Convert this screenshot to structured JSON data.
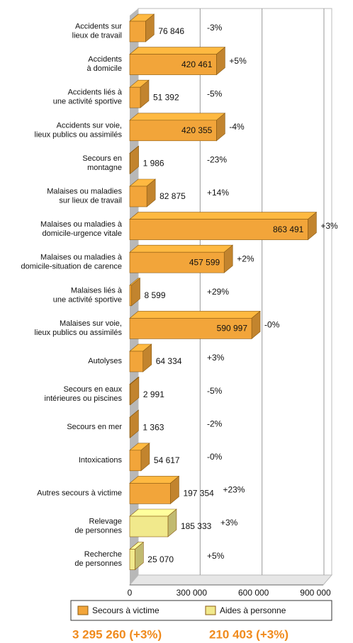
{
  "chart_data": {
    "type": "bar",
    "orientation": "horizontal",
    "categories": [
      [
        "Accidents sur",
        "lieux de travail"
      ],
      [
        "Accidents",
        "à domicile"
      ],
      [
        "Accidents liés à",
        "une activité sportive"
      ],
      [
        "Accidents sur voie,",
        "lieux publics ou assimilés"
      ],
      [
        "Secours en",
        "montagne"
      ],
      [
        "Malaises ou maladies",
        "sur lieux de travail"
      ],
      [
        "Malaises ou maladies à",
        "domicile-urgence vitale"
      ],
      [
        "Malaises ou maladies à",
        "domicile-situation de carence"
      ],
      [
        "Malaises liés à",
        "une activité sportive"
      ],
      [
        "Malaises sur voie,",
        "lieux publics ou assimilés"
      ],
      [
        "Autolyses"
      ],
      [
        "Secours en eaux",
        "intérieures ou piscines"
      ],
      [
        "Secours en mer"
      ],
      [
        "Intoxications"
      ],
      [
        "Autres secours à victime"
      ],
      [
        "Relevage",
        "de personnes"
      ],
      [
        "Recherche",
        "de personnes"
      ]
    ],
    "series": [
      {
        "name": "Secours à victime",
        "color": "#f2a53a",
        "values": [
          76846,
          420461,
          51392,
          420355,
          1986,
          82875,
          863491,
          457599,
          8599,
          590997,
          64334,
          2991,
          1363,
          54617,
          197354,
          null,
          null
        ],
        "value_labels": [
          "76 846",
          "420 461",
          "51 392",
          "420 355",
          "1 986",
          "82 875",
          "863 491",
          "457 599",
          "8 599",
          "590 997",
          "64 334",
          "2 991",
          "1 363",
          "54 617",
          "197 354",
          null,
          null
        ]
      },
      {
        "name": "Aides à personne",
        "color": "#f1e98c",
        "values": [
          null,
          null,
          null,
          null,
          null,
          null,
          null,
          null,
          null,
          null,
          null,
          null,
          null,
          null,
          null,
          185333,
          25070
        ],
        "value_labels": [
          null,
          null,
          null,
          null,
          null,
          null,
          null,
          null,
          null,
          null,
          null,
          null,
          null,
          null,
          null,
          "185 333",
          "25 070"
        ]
      }
    ],
    "changes": [
      "-3%",
      "+5%",
      "-5%",
      "-4%",
      "-23%",
      "+14%",
      "+3%",
      "+2%",
      "+29%",
      "-0%",
      "+3%",
      "-5%",
      "-2%",
      "-0%",
      "+23%",
      "+3%",
      "+5%"
    ],
    "xlim": [
      0,
      900000
    ],
    "xticks": [
      0,
      {
        "value": 300000,
        "label": "300 000"
      },
      {
        "value": 600000,
        "label": "600 000"
      },
      {
        "value": 900000,
        "label": "900 000"
      }
    ],
    "grid": true,
    "totals": [
      "3 295 260 (+3%)",
      "210 403 (+3%)"
    ]
  }
}
